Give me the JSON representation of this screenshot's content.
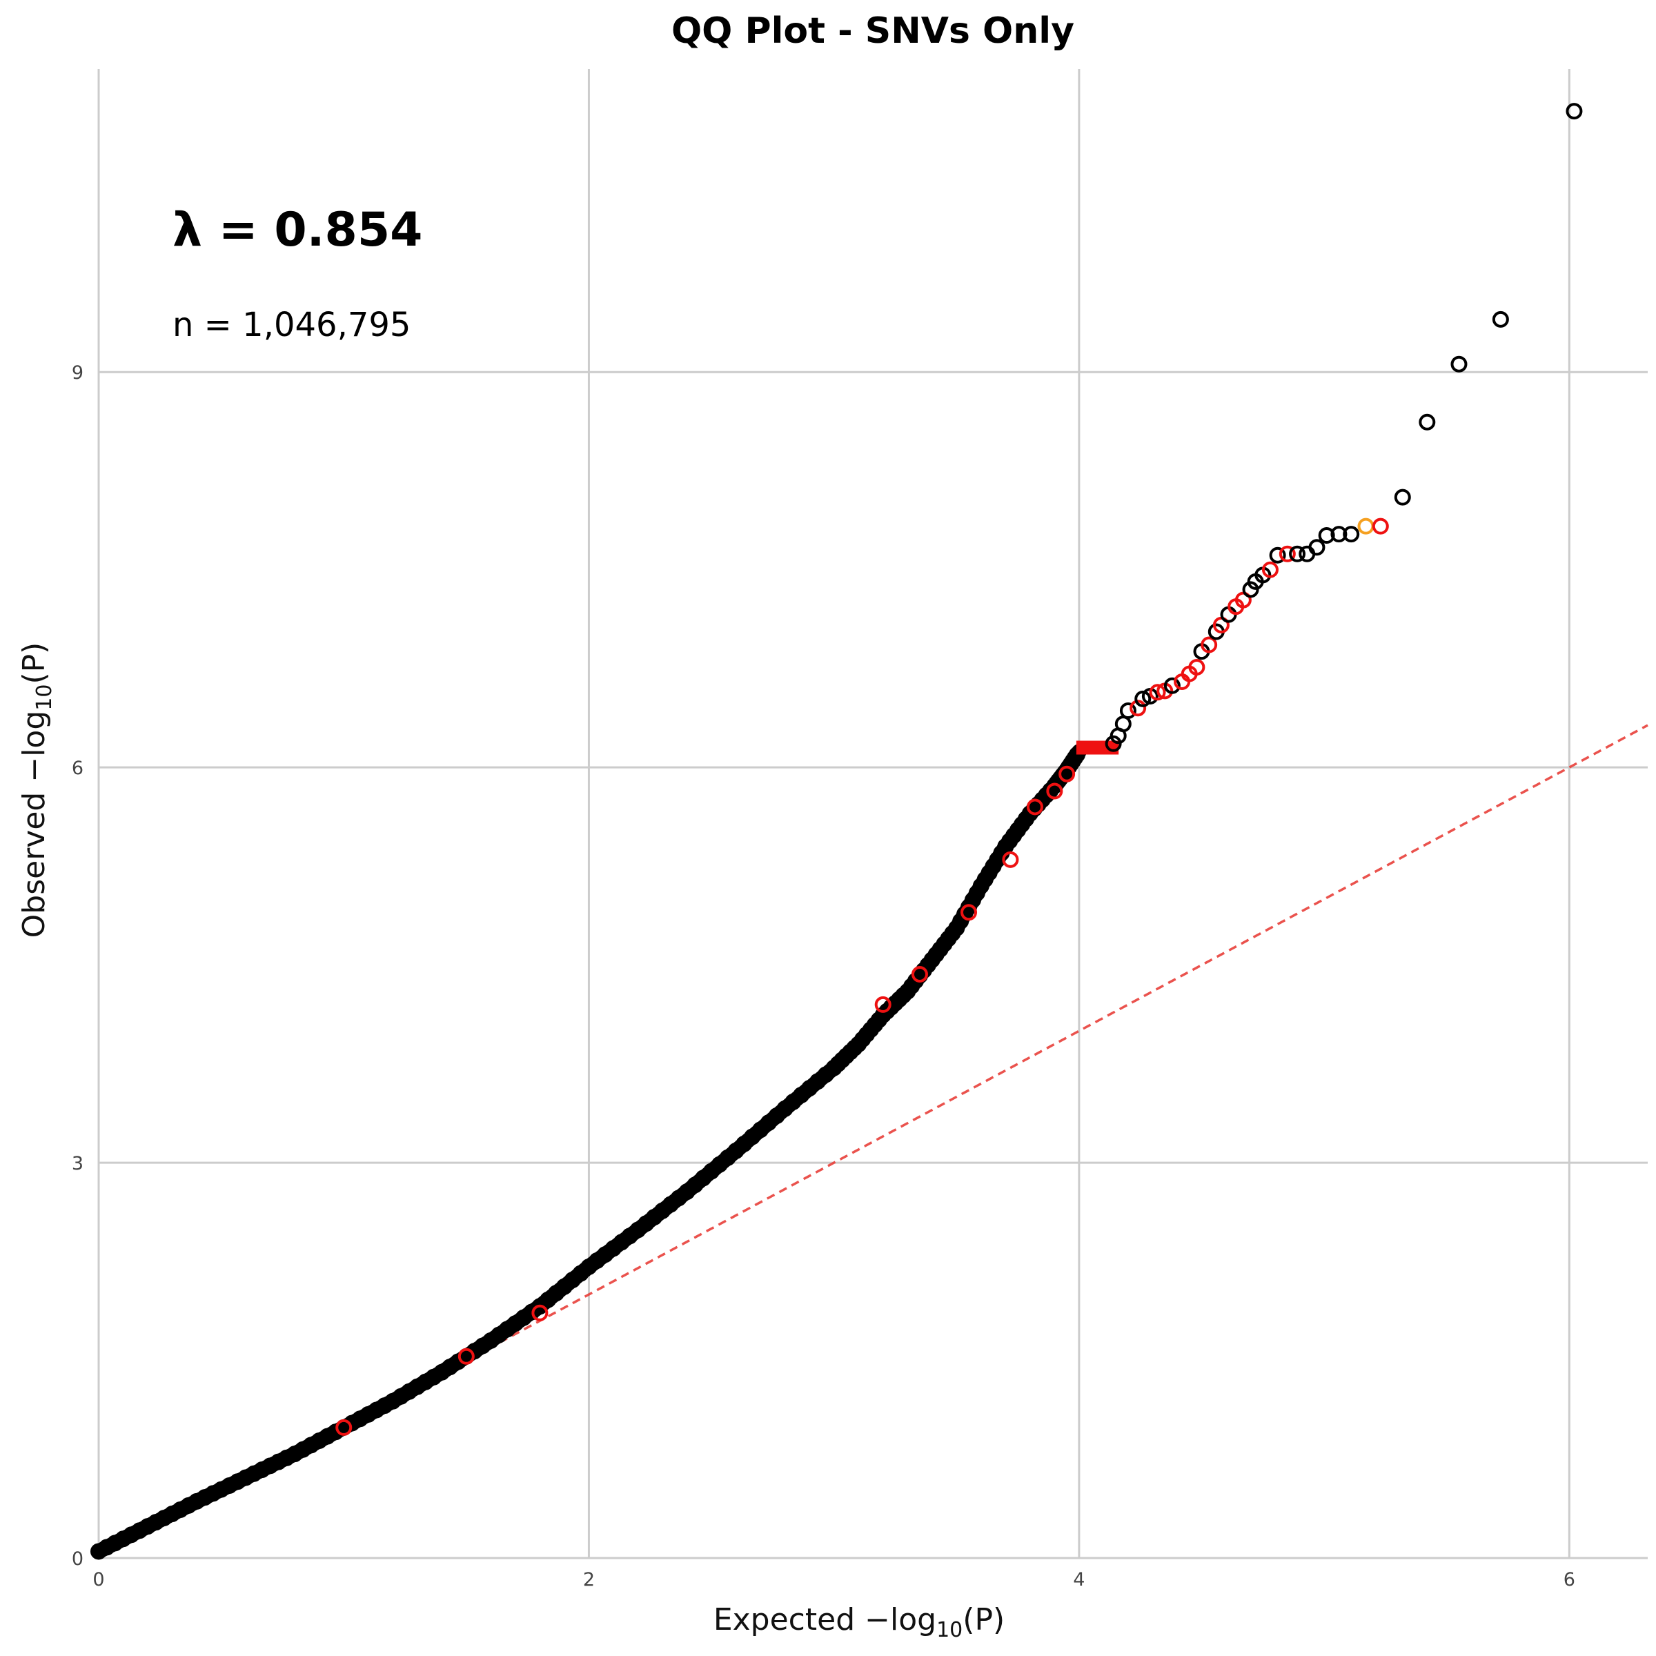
{
  "chart_data": {
    "type": "scatter",
    "title": "QQ Plot - SNVs Only",
    "xlabel": "Expected",
    "ylabel": "Observed",
    "log_label": "log",
    "log_sub": "10",
    "log_arg": "(P)",
    "minus_sign": "−",
    "annotations": {
      "lambda": "λ = 0.854",
      "n": "n = 1,046,795"
    },
    "xlim": [
      0,
      6.32
    ],
    "ylim": [
      0,
      11.3
    ],
    "xticks": [
      0,
      2,
      4,
      6
    ],
    "yticks": [
      0,
      3,
      6,
      9
    ],
    "xtick_labels": [
      "0",
      "2",
      "4",
      "6"
    ],
    "ytick_labels": [
      "0",
      "3",
      "6",
      "9"
    ],
    "grid": true,
    "reference_line": {
      "slope": 1,
      "intercept": 0,
      "style": "dashed",
      "color": "#e8403a"
    },
    "colors": {
      "black": "#000000",
      "red": "#ee1111",
      "orange": "#f5a020",
      "grid": "#cccccc",
      "axis": "#cccccc"
    },
    "curve_series": {
      "name": "",
      "points": [
        [
          0.0,
          0.05
        ],
        [
          0.2,
          0.24
        ],
        [
          0.4,
          0.43
        ],
        [
          0.6,
          0.61
        ],
        [
          0.8,
          0.79
        ],
        [
          1.0,
          0.99
        ],
        [
          1.2,
          1.19
        ],
        [
          1.4,
          1.41
        ],
        [
          1.6,
          1.65
        ],
        [
          1.8,
          1.91
        ],
        [
          2.0,
          2.21
        ],
        [
          2.2,
          2.49
        ],
        [
          2.4,
          2.78
        ],
        [
          2.6,
          3.09
        ],
        [
          2.8,
          3.41
        ],
        [
          3.0,
          3.72
        ],
        [
          3.1,
          3.9
        ],
        [
          3.2,
          4.12
        ],
        [
          3.3,
          4.3
        ],
        [
          3.4,
          4.54
        ],
        [
          3.5,
          4.78
        ],
        [
          3.6,
          5.1
        ],
        [
          3.7,
          5.4
        ],
        [
          3.8,
          5.65
        ],
        [
          3.9,
          5.86
        ],
        [
          3.95,
          5.98
        ],
        [
          4.0,
          6.12
        ]
      ],
      "red_overlays": [
        [
          1.0,
          0.99
        ],
        [
          1.5,
          1.53
        ],
        [
          1.8,
          1.86
        ],
        [
          3.2,
          4.2
        ],
        [
          3.35,
          4.43
        ],
        [
          3.55,
          4.9
        ],
        [
          3.72,
          5.3
        ],
        [
          3.82,
          5.7
        ],
        [
          3.9,
          5.82
        ],
        [
          3.95,
          5.95
        ]
      ]
    },
    "plateau": {
      "x_start": 4.0,
      "x_end": 4.15,
      "y": 6.15
    },
    "tail_points": [
      {
        "x": 4.14,
        "y": 6.18,
        "c": "black"
      },
      {
        "x": 4.16,
        "y": 6.24,
        "c": "black"
      },
      {
        "x": 4.18,
        "y": 6.33,
        "c": "black"
      },
      {
        "x": 4.2,
        "y": 6.43,
        "c": "black"
      },
      {
        "x": 4.24,
        "y": 6.45,
        "c": "red"
      },
      {
        "x": 4.26,
        "y": 6.52,
        "c": "black"
      },
      {
        "x": 4.29,
        "y": 6.54,
        "c": "black"
      },
      {
        "x": 4.32,
        "y": 6.57,
        "c": "red"
      },
      {
        "x": 4.35,
        "y": 6.58,
        "c": "red"
      },
      {
        "x": 4.38,
        "y": 6.62,
        "c": "black"
      },
      {
        "x": 4.42,
        "y": 6.65,
        "c": "red"
      },
      {
        "x": 4.45,
        "y": 6.71,
        "c": "red"
      },
      {
        "x": 4.48,
        "y": 6.76,
        "c": "red"
      },
      {
        "x": 4.5,
        "y": 6.88,
        "c": "black"
      },
      {
        "x": 4.53,
        "y": 6.93,
        "c": "red"
      },
      {
        "x": 4.56,
        "y": 7.03,
        "c": "black"
      },
      {
        "x": 4.58,
        "y": 7.08,
        "c": "red"
      },
      {
        "x": 4.61,
        "y": 7.16,
        "c": "black"
      },
      {
        "x": 4.64,
        "y": 7.22,
        "c": "red"
      },
      {
        "x": 4.67,
        "y": 7.27,
        "c": "red"
      },
      {
        "x": 4.7,
        "y": 7.35,
        "c": "black"
      },
      {
        "x": 4.72,
        "y": 7.41,
        "c": "black"
      },
      {
        "x": 4.75,
        "y": 7.46,
        "c": "black"
      },
      {
        "x": 4.78,
        "y": 7.5,
        "c": "red"
      },
      {
        "x": 4.81,
        "y": 7.61,
        "c": "black"
      },
      {
        "x": 4.85,
        "y": 7.62,
        "c": "red"
      },
      {
        "x": 4.89,
        "y": 7.62,
        "c": "black"
      },
      {
        "x": 4.93,
        "y": 7.62,
        "c": "black"
      },
      {
        "x": 4.97,
        "y": 7.67,
        "c": "black"
      },
      {
        "x": 5.01,
        "y": 7.76,
        "c": "black"
      },
      {
        "x": 5.06,
        "y": 7.77,
        "c": "black"
      },
      {
        "x": 5.11,
        "y": 7.77,
        "c": "black"
      },
      {
        "x": 5.17,
        "y": 7.83,
        "c": "orange"
      },
      {
        "x": 5.23,
        "y": 7.83,
        "c": "red"
      },
      {
        "x": 5.32,
        "y": 8.05,
        "c": "black"
      },
      {
        "x": 5.42,
        "y": 8.62,
        "c": "black"
      },
      {
        "x": 5.55,
        "y": 9.06,
        "c": "black"
      },
      {
        "x": 5.72,
        "y": 9.4,
        "c": "black"
      },
      {
        "x": 6.02,
        "y": 10.98,
        "c": "black"
      }
    ]
  }
}
